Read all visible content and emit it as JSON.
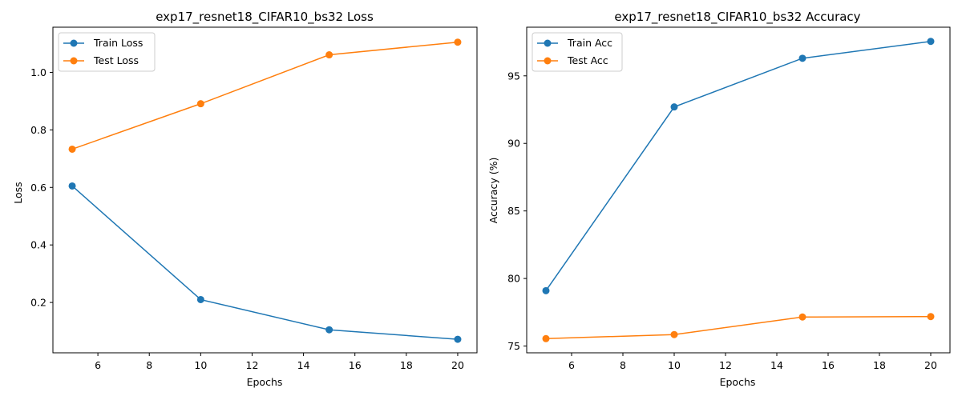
{
  "chart_data": [
    {
      "type": "line",
      "title": "exp17_resnet18_CIFAR10_bs32 Loss",
      "xlabel": "Epochs",
      "ylabel": "Loss",
      "x": [
        5,
        10,
        15,
        20
      ],
      "xticks": [
        6,
        8,
        10,
        12,
        14,
        16,
        18,
        20
      ],
      "yticks": [
        0.2,
        0.4,
        0.6,
        0.8,
        1.0
      ],
      "ytick_labels": [
        "0.2",
        "0.4",
        "0.6",
        "0.8",
        "1.0"
      ],
      "xlim": [
        4.25,
        20.75
      ],
      "ylim": [
        0.025,
        1.157
      ],
      "grid": false,
      "legend": "top-left",
      "series": [
        {
          "name": "Train Loss",
          "values": [
            0.605,
            0.21,
            0.105,
            0.072
          ],
          "color": "#1f77b4"
        },
        {
          "name": "Test Loss",
          "values": [
            0.733,
            0.891,
            1.061,
            1.105
          ],
          "color": "#ff7f0e"
        }
      ]
    },
    {
      "type": "line",
      "title": "exp17_resnet18_CIFAR10_bs32 Accuracy",
      "xlabel": "Epochs",
      "ylabel": "Accuracy (%)",
      "x": [
        5,
        10,
        15,
        20
      ],
      "xticks": [
        6,
        8,
        10,
        12,
        14,
        16,
        18,
        20
      ],
      "yticks": [
        75,
        80,
        85,
        90,
        95
      ],
      "ytick_labels": [
        "75",
        "80",
        "85",
        "90",
        "95"
      ],
      "xlim": [
        4.25,
        20.75
      ],
      "ylim": [
        74.5,
        98.6
      ],
      "grid": false,
      "legend": "top-left",
      "series": [
        {
          "name": "Train Acc",
          "values": [
            79.1,
            92.7,
            96.3,
            97.55
          ],
          "color": "#1f77b4"
        },
        {
          "name": "Test Acc",
          "values": [
            75.55,
            75.85,
            77.15,
            77.18
          ],
          "color": "#ff7f0e"
        }
      ]
    }
  ]
}
